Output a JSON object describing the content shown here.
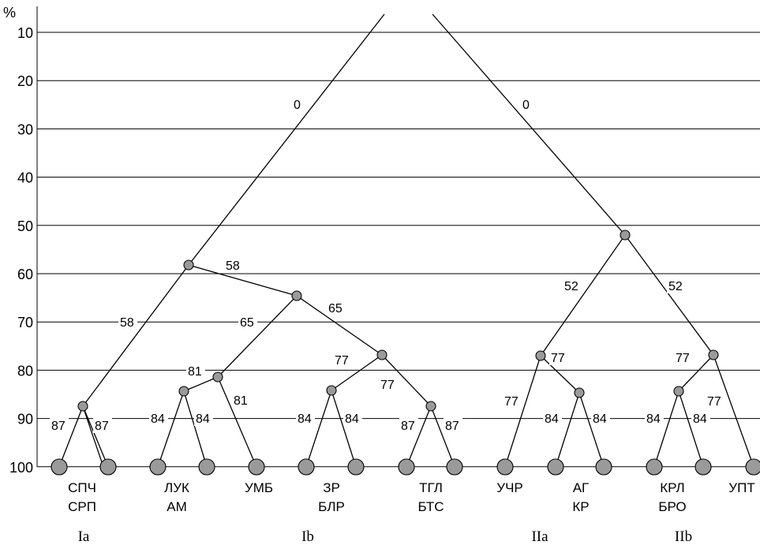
{
  "axis": {
    "unit": "%",
    "ticks": [
      10,
      20,
      30,
      40,
      50,
      60,
      70,
      80,
      90,
      100
    ]
  },
  "colors": {
    "node_fill": "#9a9a9a",
    "line": "#000000"
  },
  "edge_labels": {
    "root_left": "0",
    "root_right": "0",
    "n58_left": "58",
    "n58_right": "58",
    "n65_left": "65",
    "n65_right": "65",
    "n77a_left": "77",
    "n77a_right": "77",
    "n81_left": "81",
    "n81_right": "81",
    "n87a_left": "87",
    "n87a_right": "87",
    "n84a_left": "84",
    "n84a_right": "84",
    "n84b_left": "84",
    "n84b_right": "84",
    "n87b_left": "87",
    "n87b_right": "87",
    "n52_left": "52",
    "n52_right": "52",
    "n77b_left": "77",
    "n77b_right": "77",
    "n77c_left": "77",
    "n77c_right": "77",
    "n84c_left": "84",
    "n84c_right": "84",
    "n84d_left": "84",
    "n84d_right": "84"
  },
  "leaf_labels": {
    "spch_srp": {
      "line1": "СПЧ",
      "line2": "СРП"
    },
    "luk_am": {
      "line1": "ЛУК",
      "line2": "АМ"
    },
    "umb": {
      "line1": "УМБ"
    },
    "zr_blr": {
      "line1": "ЗР",
      "line2": "БЛР"
    },
    "tgl_bts": {
      "line1": "ТГЛ",
      "line2": "БТС"
    },
    "uchr": {
      "line1": "УЧР"
    },
    "ag_kr": {
      "line1": "АГ",
      "line2": "КР"
    },
    "krl_bro": {
      "line1": "КРЛ",
      "line2": "БРО"
    },
    "upt": {
      "line1": "УПТ"
    }
  },
  "groups": {
    "Ia": "Ia",
    "Ib": "Ib",
    "IIa": "IIa",
    "IIb": "IIb"
  }
}
